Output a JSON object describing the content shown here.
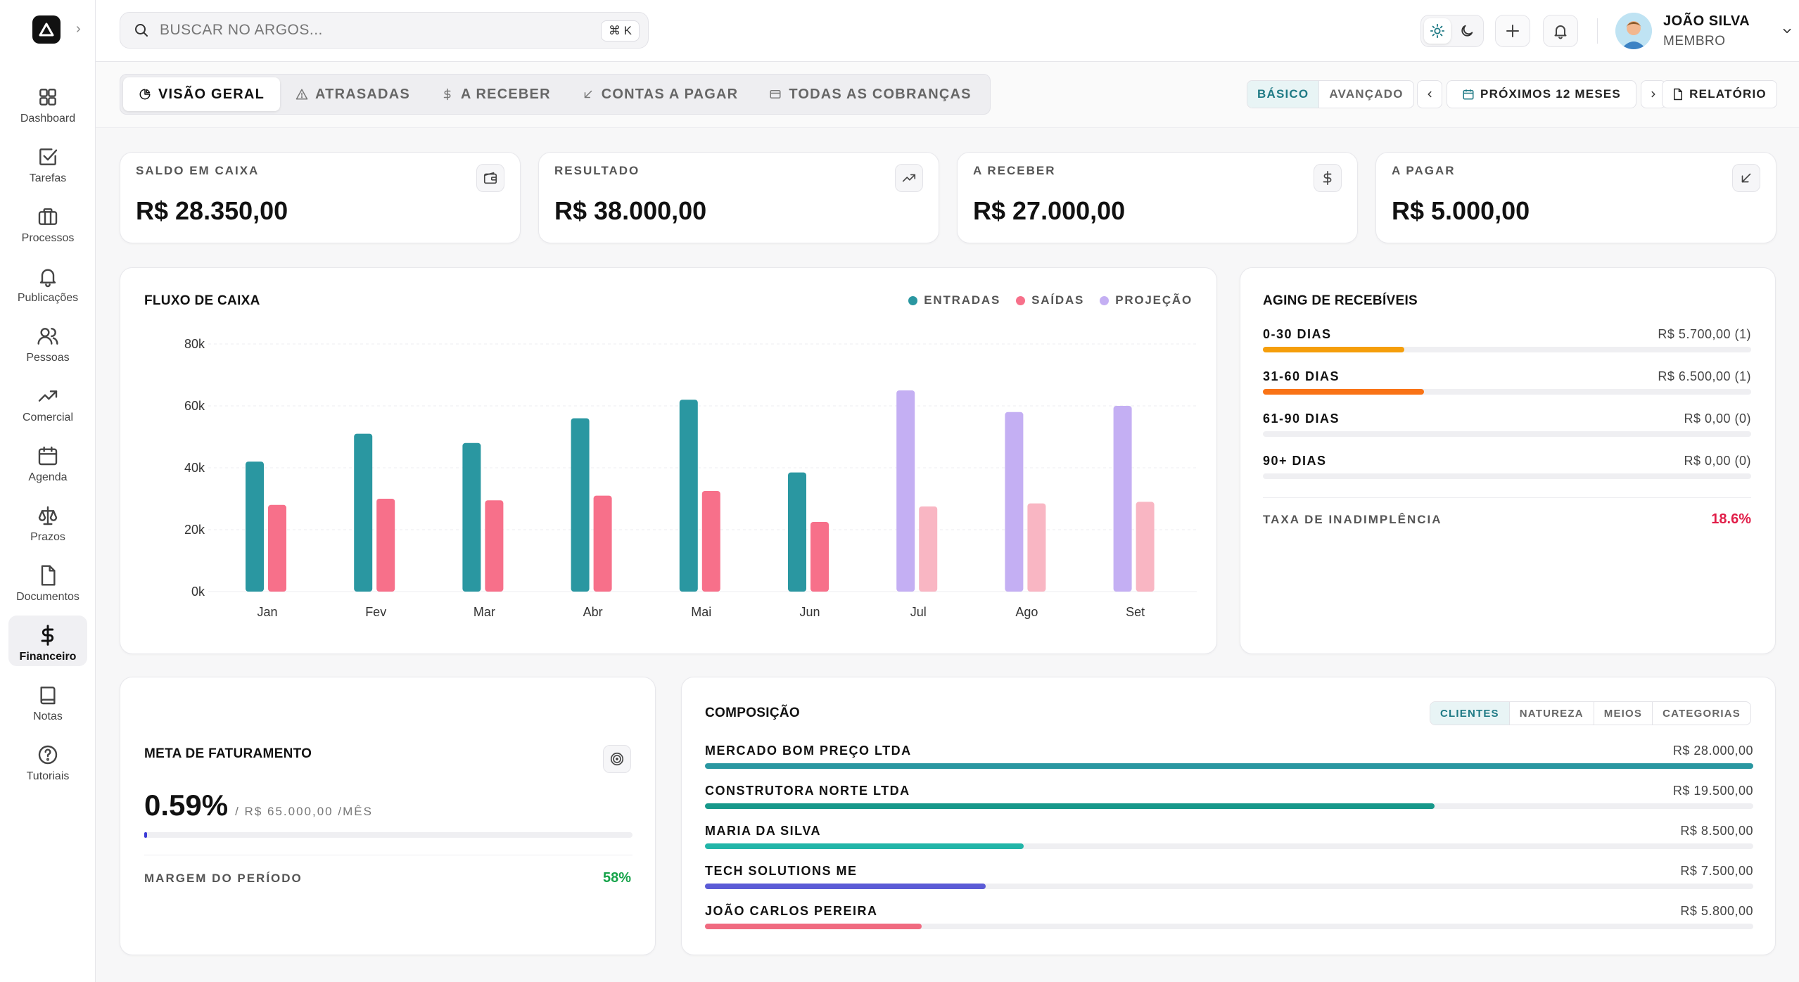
{
  "app": {
    "search_placeholder": "BUSCAR NO ARGOS...",
    "search_shortcut": "⌘ K"
  },
  "user": {
    "name": "JOÃO SILVA",
    "role": "MEMBRO"
  },
  "sidebar": {
    "items": [
      {
        "label": "Dashboard",
        "icon": "grid-icon"
      },
      {
        "label": "Tarefas",
        "icon": "checkbox-icon"
      },
      {
        "label": "Processos",
        "icon": "briefcase-icon"
      },
      {
        "label": "Publicações",
        "icon": "bell-icon"
      },
      {
        "label": "Pessoas",
        "icon": "users-icon"
      },
      {
        "label": "Comercial",
        "icon": "trending-up-icon"
      },
      {
        "label": "Agenda",
        "icon": "calendar-icon"
      },
      {
        "label": "Prazos",
        "icon": "scale-icon"
      },
      {
        "label": "Documentos",
        "icon": "file-icon"
      },
      {
        "label": "Financeiro",
        "icon": "dollar-icon",
        "active": true
      },
      {
        "label": "Notas",
        "icon": "book-icon"
      },
      {
        "label": "Tutoriais",
        "icon": "help-circle-icon"
      }
    ]
  },
  "tabs": [
    {
      "label": "VISÃO GERAL",
      "icon": "pie-icon",
      "active": true
    },
    {
      "label": "ATRASADAS",
      "icon": "alert-icon"
    },
    {
      "label": "A RECEBER",
      "icon": "dollar-icon"
    },
    {
      "label": "CONTAS A PAGAR",
      "icon": "arrow-down-left-icon"
    },
    {
      "label": "TODAS AS COBRANÇAS",
      "icon": "card-icon"
    }
  ],
  "toolbar": {
    "mode_basic": "BÁSICO",
    "mode_advanced": "AVANÇADO",
    "period": "PRÓXIMOS 12 MESES",
    "report": "RELATÓRIO"
  },
  "kpis": [
    {
      "label": "SALDO EM CAIXA",
      "value": "R$ 28.350,00",
      "icon": "wallet-icon"
    },
    {
      "label": "RESULTADO",
      "value": "R$ 38.000,00",
      "icon": "trending-up-icon"
    },
    {
      "label": "A RECEBER",
      "value": "R$ 27.000,00",
      "icon": "dollar-icon"
    },
    {
      "label": "A PAGAR",
      "value": "R$ 5.000,00",
      "icon": "arrow-down-left-icon"
    }
  ],
  "cashflow": {
    "title": "FLUXO DE CAIXA",
    "legend": [
      "ENTRADAS",
      "SAÍDAS",
      "PROJEÇÃO"
    ]
  },
  "chart_data": {
    "type": "bar",
    "title": "FLUXO DE CAIXA",
    "categories": [
      "Jan",
      "Fev",
      "Mar",
      "Abr",
      "Mai",
      "Jun",
      "Jul",
      "Ago",
      "Set"
    ],
    "series": [
      {
        "name": "ENTRADAS",
        "values": [
          42000,
          51000,
          48000,
          56000,
          62000,
          38500,
          65000,
          58000,
          60000
        ]
      },
      {
        "name": "SAÍDAS",
        "values": [
          28000,
          30000,
          29500,
          31000,
          32500,
          22500,
          27500,
          28500,
          29000
        ]
      }
    ],
    "projection_start_index": 6,
    "projection_label": "PROJEÇÃO",
    "ylim": [
      0,
      80000
    ],
    "yticks": [
      "0k",
      "20k",
      "40k",
      "60k",
      "80k"
    ],
    "ytick_values": [
      0,
      20000,
      40000,
      60000,
      80000
    ],
    "grid": true,
    "legend_position": "top-right",
    "colors": {
      "entradas": "#2a97a1",
      "saidas": "#f7708a",
      "proj_entradas": "#c4aff3",
      "proj_saidas": "#f9b6c3"
    }
  },
  "aging": {
    "title": "AGING DE RECEBÍVEIS",
    "rows": [
      {
        "label": "0-30 DIAS",
        "value": "R$ 5.700,00 (1)",
        "fraction": 0.29,
        "color": "#f59e0b"
      },
      {
        "label": "31-60 DIAS",
        "value": "R$ 6.500,00 (1)",
        "fraction": 0.33,
        "color": "#f97316"
      },
      {
        "label": "61-90 DIAS",
        "value": "R$ 0,00 (0)",
        "fraction": 0,
        "color": "#f97316"
      },
      {
        "label": "90+ DIAS",
        "value": "R$ 0,00 (0)",
        "fraction": 0,
        "color": "#f97316"
      }
    ],
    "default_rate_label": "TAXA DE INADIMPLÊNCIA",
    "default_rate_value": "18.6%",
    "default_rate_color": "#e11d48"
  },
  "goal": {
    "title": "META DE FATURAMENTO",
    "percent": "0.59%",
    "target": "/ R$ 65.000,00 /MÊS",
    "fraction": 0.0059,
    "margin_label": "MARGEM DO PERÍODO",
    "margin_value": "58%",
    "margin_color": "#16a34a"
  },
  "composition": {
    "title": "COMPOSIÇÃO",
    "filters": [
      {
        "label": "CLIENTES",
        "active": true
      },
      {
        "label": "NATUREZA"
      },
      {
        "label": "MEIOS"
      },
      {
        "label": "CATEGORIAS"
      }
    ],
    "rows": [
      {
        "label": "MERCADO BOM PREÇO LTDA",
        "value": "R$ 28.000,00",
        "fraction": 1.0,
        "color": "#2a97a1"
      },
      {
        "label": "CONSTRUTORA NORTE LTDA",
        "value": "R$ 19.500,00",
        "fraction": 0.696,
        "color": "#17988a"
      },
      {
        "label": "MARIA DA SILVA",
        "value": "R$ 8.500,00",
        "fraction": 0.304,
        "color": "#22b5a8"
      },
      {
        "label": "TECH SOLUTIONS ME",
        "value": "R$ 7.500,00",
        "fraction": 0.268,
        "color": "#5b5bd6"
      },
      {
        "label": "JOÃO CARLOS PEREIRA",
        "value": "R$ 5.800,00",
        "fraction": 0.207,
        "color": "#f06a80"
      }
    ]
  }
}
